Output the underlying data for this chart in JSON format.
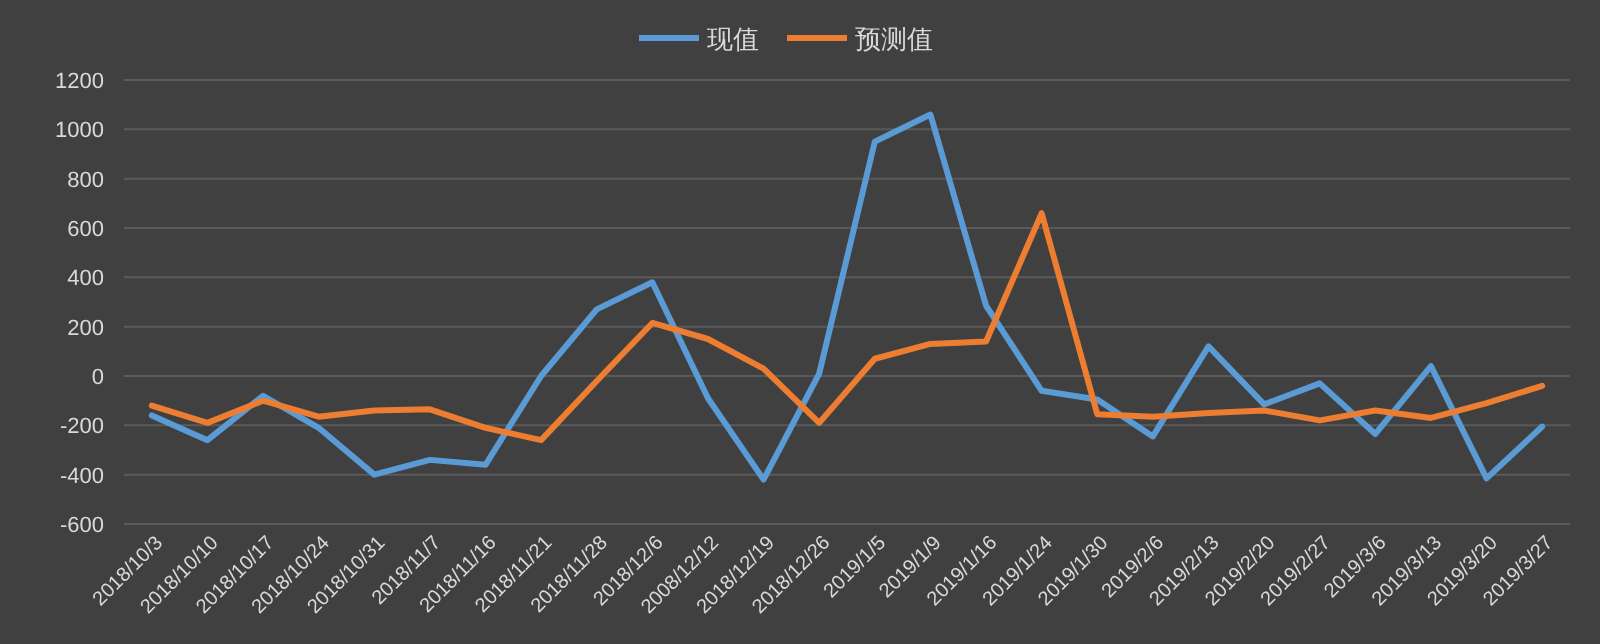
{
  "chart_data": {
    "type": "line",
    "categories": [
      "2018/10/3",
      "2018/10/10",
      "2018/10/17",
      "2018/10/24",
      "2018/10/31",
      "2018/11/7",
      "2018/11/16",
      "2018/11/21",
      "2018/11/28",
      "2018/12/6",
      "2008/12/12",
      "2018/12/19",
      "2018/12/26",
      "2019/1/5",
      "2019/1/9",
      "2019/1/16",
      "2019/1/24",
      "2019/1/30",
      "2019/2/6",
      "2019/2/13",
      "2019/2/20",
      "2019/2/27",
      "2019/3/6",
      "2019/3/13",
      "2019/3/20",
      "2019/3/27"
    ],
    "series": [
      {
        "name": "现值",
        "color": "#5b9bd5",
        "values": [
          -160,
          -260,
          -80,
          -210,
          -400,
          -340,
          -360,
          0,
          270,
          380,
          -90,
          -420,
          10,
          950,
          1060,
          285,
          -60,
          -95,
          -245,
          120,
          -115,
          -30,
          -235,
          40,
          -415,
          -205
        ]
      },
      {
        "name": "预测值",
        "color": "#ed7d31",
        "values": [
          -120,
          -190,
          -100,
          -165,
          -140,
          -135,
          -210,
          -260,
          -20,
          215,
          150,
          30,
          -190,
          70,
          130,
          140,
          660,
          -155,
          -165,
          -150,
          -140,
          -180,
          -140,
          -170,
          -110,
          -40
        ]
      }
    ],
    "ylim": [
      -600,
      1200
    ],
    "yticks": [
      -600,
      -400,
      -200,
      0,
      200,
      400,
      600,
      800,
      1000,
      1200
    ],
    "grid": "y",
    "legend": "top",
    "marker": "none",
    "line_style": "solid"
  }
}
